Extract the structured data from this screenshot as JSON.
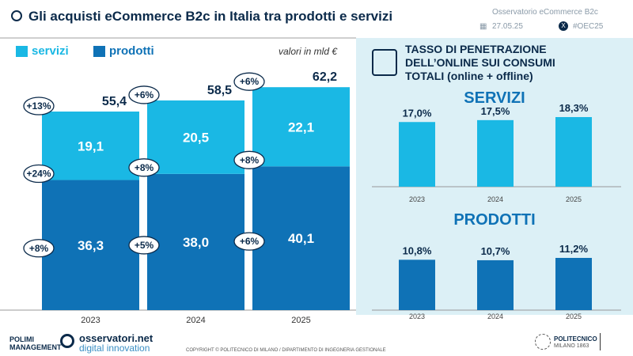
{
  "header": {
    "title": "Gli acquisti eCommerce B2c in Italia tra prodotti e servizi",
    "observatory": "Osservatorio eCommerce B2c",
    "date": "27.05.25",
    "hashtag": "#OEC25"
  },
  "colors": {
    "servizi": "#1ab8e4",
    "prodotti": "#0f72b6",
    "text": "#0b2a4a",
    "panel": "#dcf0f6"
  },
  "chart_data": [
    {
      "type": "bar",
      "stacked": true,
      "categories": [
        "2023",
        "2024",
        "2025"
      ],
      "unit_note": "valori in mld €",
      "series": [
        {
          "name": "prodotti",
          "values": [
            36.3,
            38.0,
            40.1
          ],
          "labels": [
            "36,3",
            "38,0",
            "40,1"
          ],
          "growth": [
            "+8%",
            "+5%",
            "+6%"
          ],
          "growth_prev": [
            "+24%",
            "+8%",
            "+8%"
          ]
        },
        {
          "name": "servizi",
          "values": [
            19.1,
            20.5,
            22.1
          ],
          "labels": [
            "19,1",
            "20,5",
            "22,1"
          ]
        }
      ],
      "totals": [
        "55,4",
        "58,5",
        "62,2"
      ],
      "total_growth": [
        "+13%",
        "+6%",
        "+6%"
      ],
      "legend": "top-left"
    },
    {
      "type": "bar",
      "title": "SERVIZI",
      "categories": [
        "2023",
        "2024",
        "2025"
      ],
      "values": [
        17.0,
        17.5,
        18.3
      ],
      "labels": [
        "17,0%",
        "17,5%",
        "18,3%"
      ]
    },
    {
      "type": "bar",
      "title": "PRODOTTI",
      "categories": [
        "2023",
        "2024",
        "2025"
      ],
      "values": [
        10.8,
        10.7,
        11.2
      ],
      "labels": [
        "10,8%",
        "10,7%",
        "11,2%"
      ]
    }
  ],
  "panel": {
    "title_lines": [
      "TASSO DI PENETRAZIONE",
      "DELL’ONLINE SUI CONSUMI",
      "TOTALI (online + offline)"
    ]
  },
  "footer": {
    "polimi": "POLIMI MANAGEMENT",
    "osservatori": "osservatori.net",
    "osservatori_sub": "digital innovation",
    "copyright": "COPYRIGHT © POLITECNICO DI MILANO / DIPARTIMENTO DI INGEGNERIA GESTIONALE",
    "politecnico": "POLITECNICO",
    "milano": "MILANO 1863"
  }
}
